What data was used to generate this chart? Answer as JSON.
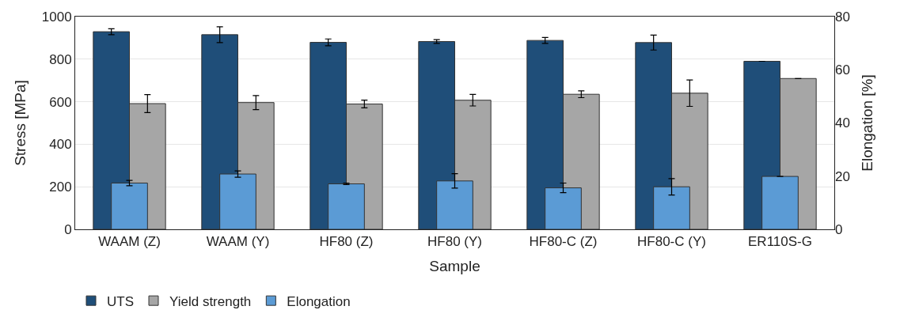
{
  "chart_data": {
    "type": "bar",
    "xlabel": "Sample",
    "ylabel": "Stress [MPa]",
    "y2label": "Elongation [%]",
    "categories": [
      "WAAM (Z)",
      "WAAM (Y)",
      "HF80 (Z)",
      "HF80 (Y)",
      "HF80-C (Z)",
      "HF80-C (Y)",
      "ER110S-G"
    ],
    "series": [
      {
        "name": "UTS",
        "color": "#1f4e79",
        "values": [
          929,
          915,
          879,
          883,
          888,
          878,
          790
        ],
        "errors": [
          14,
          37,
          16,
          9,
          14,
          35,
          null
        ]
      },
      {
        "name": "Yield strength",
        "color": "#a6a6a6",
        "values": [
          591,
          596,
          589,
          607,
          635,
          640,
          709
        ],
        "errors": [
          42,
          33,
          18,
          27,
          16,
          62,
          null
        ]
      },
      {
        "name": "Elongation",
        "color": "#5b9bd5",
        "axis": "y2",
        "values": [
          17.4,
          20.8,
          17.1,
          18.2,
          15.6,
          16.0,
          19.9
        ],
        "errors": [
          1.0,
          1.2,
          0.3,
          2.7,
          1.8,
          3.1,
          null
        ]
      }
    ],
    "ylim": [
      0,
      1000
    ],
    "yticks": [
      0,
      200,
      400,
      600,
      800,
      1000
    ],
    "y2lim": [
      0,
      80
    ],
    "y2ticks": [
      0,
      20,
      40,
      60,
      80
    ],
    "grid": "y",
    "legend": "bottom left"
  }
}
